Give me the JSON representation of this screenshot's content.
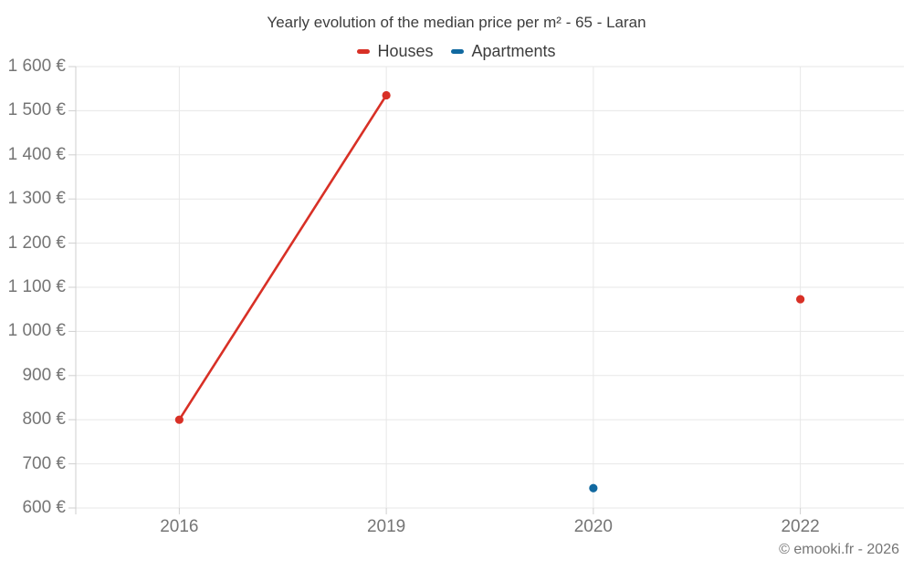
{
  "page": {
    "attribution": "© emooki.fr - 2026"
  },
  "chart_data": {
    "type": "line",
    "title": "Yearly evolution of the median price per m² - 65 - Laran",
    "categories": [
      "2016",
      "2019",
      "2020",
      "2022"
    ],
    "series": [
      {
        "name": "Houses",
        "color": "#d83026",
        "values": [
          800,
          1535,
          null,
          1073
        ]
      },
      {
        "name": "Apartments",
        "color": "#1169a0",
        "values": [
          null,
          null,
          645,
          null
        ]
      }
    ],
    "ylim": [
      600,
      1600
    ],
    "ytick_step": 100,
    "ytick_suffix": " €",
    "xlabel": "",
    "ylabel": "",
    "grid": true,
    "legend_position": "top"
  }
}
